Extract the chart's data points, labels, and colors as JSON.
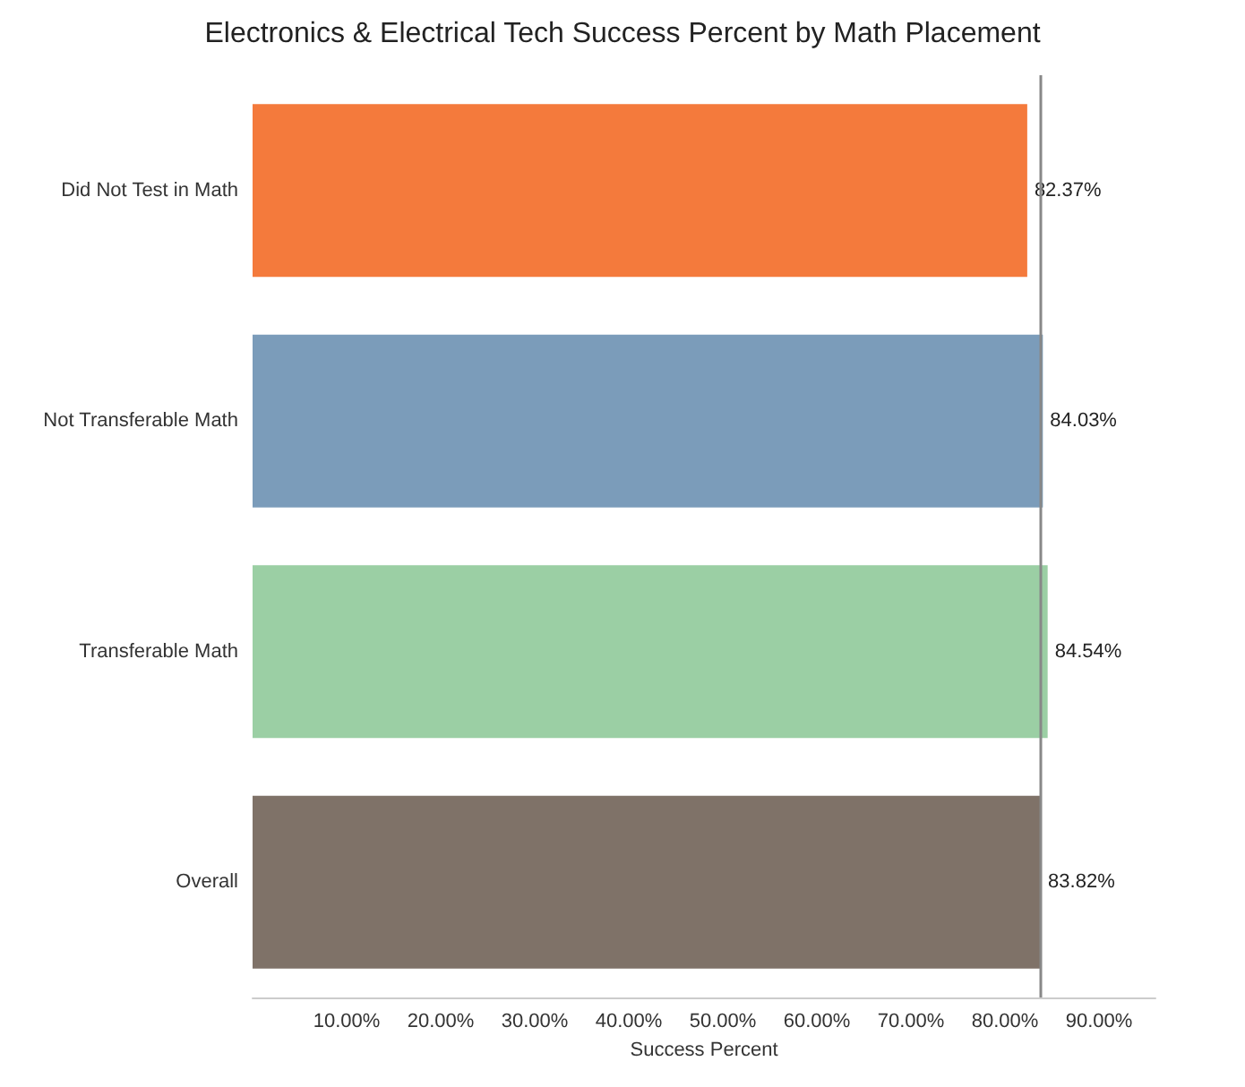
{
  "chart_data": {
    "type": "bar",
    "orientation": "horizontal",
    "title": "Electronics & Electrical Tech Success Percent by Math Placement",
    "xlabel": "Success Percent",
    "categories": [
      "Did Not Test in Math",
      "Not Transferable Math",
      "Transferable Math",
      "Overall"
    ],
    "values": [
      82.37,
      84.03,
      84.54,
      83.82
    ],
    "colors": [
      "#f47a3c",
      "#7b9cba",
      "#9bcfa4",
      "#7f7268"
    ],
    "value_labels": [
      "82.37%",
      "84.03%",
      "84.54%",
      "83.82%"
    ],
    "xlim": [
      0,
      96
    ],
    "xticks": [
      {
        "value": 10,
        "label": "10.00%"
      },
      {
        "value": 20,
        "label": "20.00%"
      },
      {
        "value": 30,
        "label": "30.00%"
      },
      {
        "value": 40,
        "label": "40.00%"
      },
      {
        "value": 50,
        "label": "50.00%"
      },
      {
        "value": 60,
        "label": "60.00%"
      },
      {
        "value": 70,
        "label": "70.00%"
      },
      {
        "value": 80,
        "label": "80.00%"
      },
      {
        "value": 90,
        "label": "90.00%"
      }
    ],
    "ref_lines": [
      {
        "axis": "x",
        "value": 83.82,
        "color": "#888888"
      }
    ],
    "grid": false
  }
}
